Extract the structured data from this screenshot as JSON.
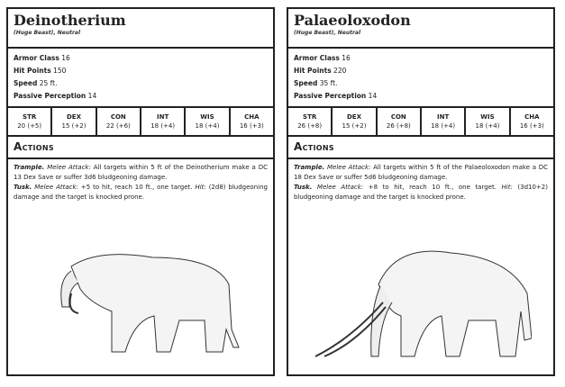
{
  "cards": [
    {
      "name": "Deinotherium",
      "type": "(Huge Beast), Neutral",
      "stats": [
        {
          "label": "Armor Class",
          "value": "16"
        },
        {
          "label": "Hit Points",
          "value": "150"
        },
        {
          "label": "Speed",
          "value": "25 ft."
        },
        {
          "label": "Passive Perception",
          "value": "14"
        }
      ],
      "abilities": [
        {
          "k": "STR",
          "v": "20 (+5)"
        },
        {
          "k": "DEX",
          "v": "15 (+2)"
        },
        {
          "k": "CON",
          "v": "22 (+6)"
        },
        {
          "k": "INT",
          "v": "18 (+4)"
        },
        {
          "k": "WIS",
          "v": "18 (+4)"
        },
        {
          "k": "CHA",
          "v": "16 (+3)"
        }
      ],
      "actions_header": "Actions",
      "actions": [
        {
          "name": "Trample.",
          "type": "Melee Attack:",
          "text": "All targets within 5 ft of the Deinotherium make a DC 13 Dex Save or suffer 3d6 bludgeoning damage."
        },
        {
          "name": "Tusk.",
          "type": "Melee Attack:",
          "text": "+5 to hit, reach 10 ft., one target.",
          "hit": "Hit:",
          "hit_text": "(2d8) bludgeoning damage and the target is knocked prone."
        }
      ]
    },
    {
      "name": "Palaeoloxodon",
      "type": "(Huge Beast), Neutral",
      "stats": [
        {
          "label": "Armor Class",
          "value": "16"
        },
        {
          "label": "Hit Points",
          "value": "220"
        },
        {
          "label": "Speed",
          "value": "35 ft."
        },
        {
          "label": "Passive Perception",
          "value": "14"
        }
      ],
      "abilities": [
        {
          "k": "STR",
          "v": "26 (+8)"
        },
        {
          "k": "DEX",
          "v": "15 (+2)"
        },
        {
          "k": "CON",
          "v": "26 (+8)"
        },
        {
          "k": "INT",
          "v": "18 (+4)"
        },
        {
          "k": "WIS",
          "v": "18 (+4)"
        },
        {
          "k": "CHA",
          "v": "16 (+3)"
        }
      ],
      "actions_header": "Actions",
      "actions": [
        {
          "name": "Trample.",
          "type": "Melee Attack:",
          "text": "All targets within 5 ft of the Palaeoloxodon make a DC 18 Dex Save or suffer 5d6 bludgeoning damage."
        },
        {
          "name": "Tusk.",
          "type": "Melee Attack:",
          "text": "+8 to hit, reach 10 ft., one target.",
          "hit": "Hit:",
          "hit_text": "(3d10+2) bludgeoning damage and the target is knocked prone."
        }
      ]
    }
  ]
}
